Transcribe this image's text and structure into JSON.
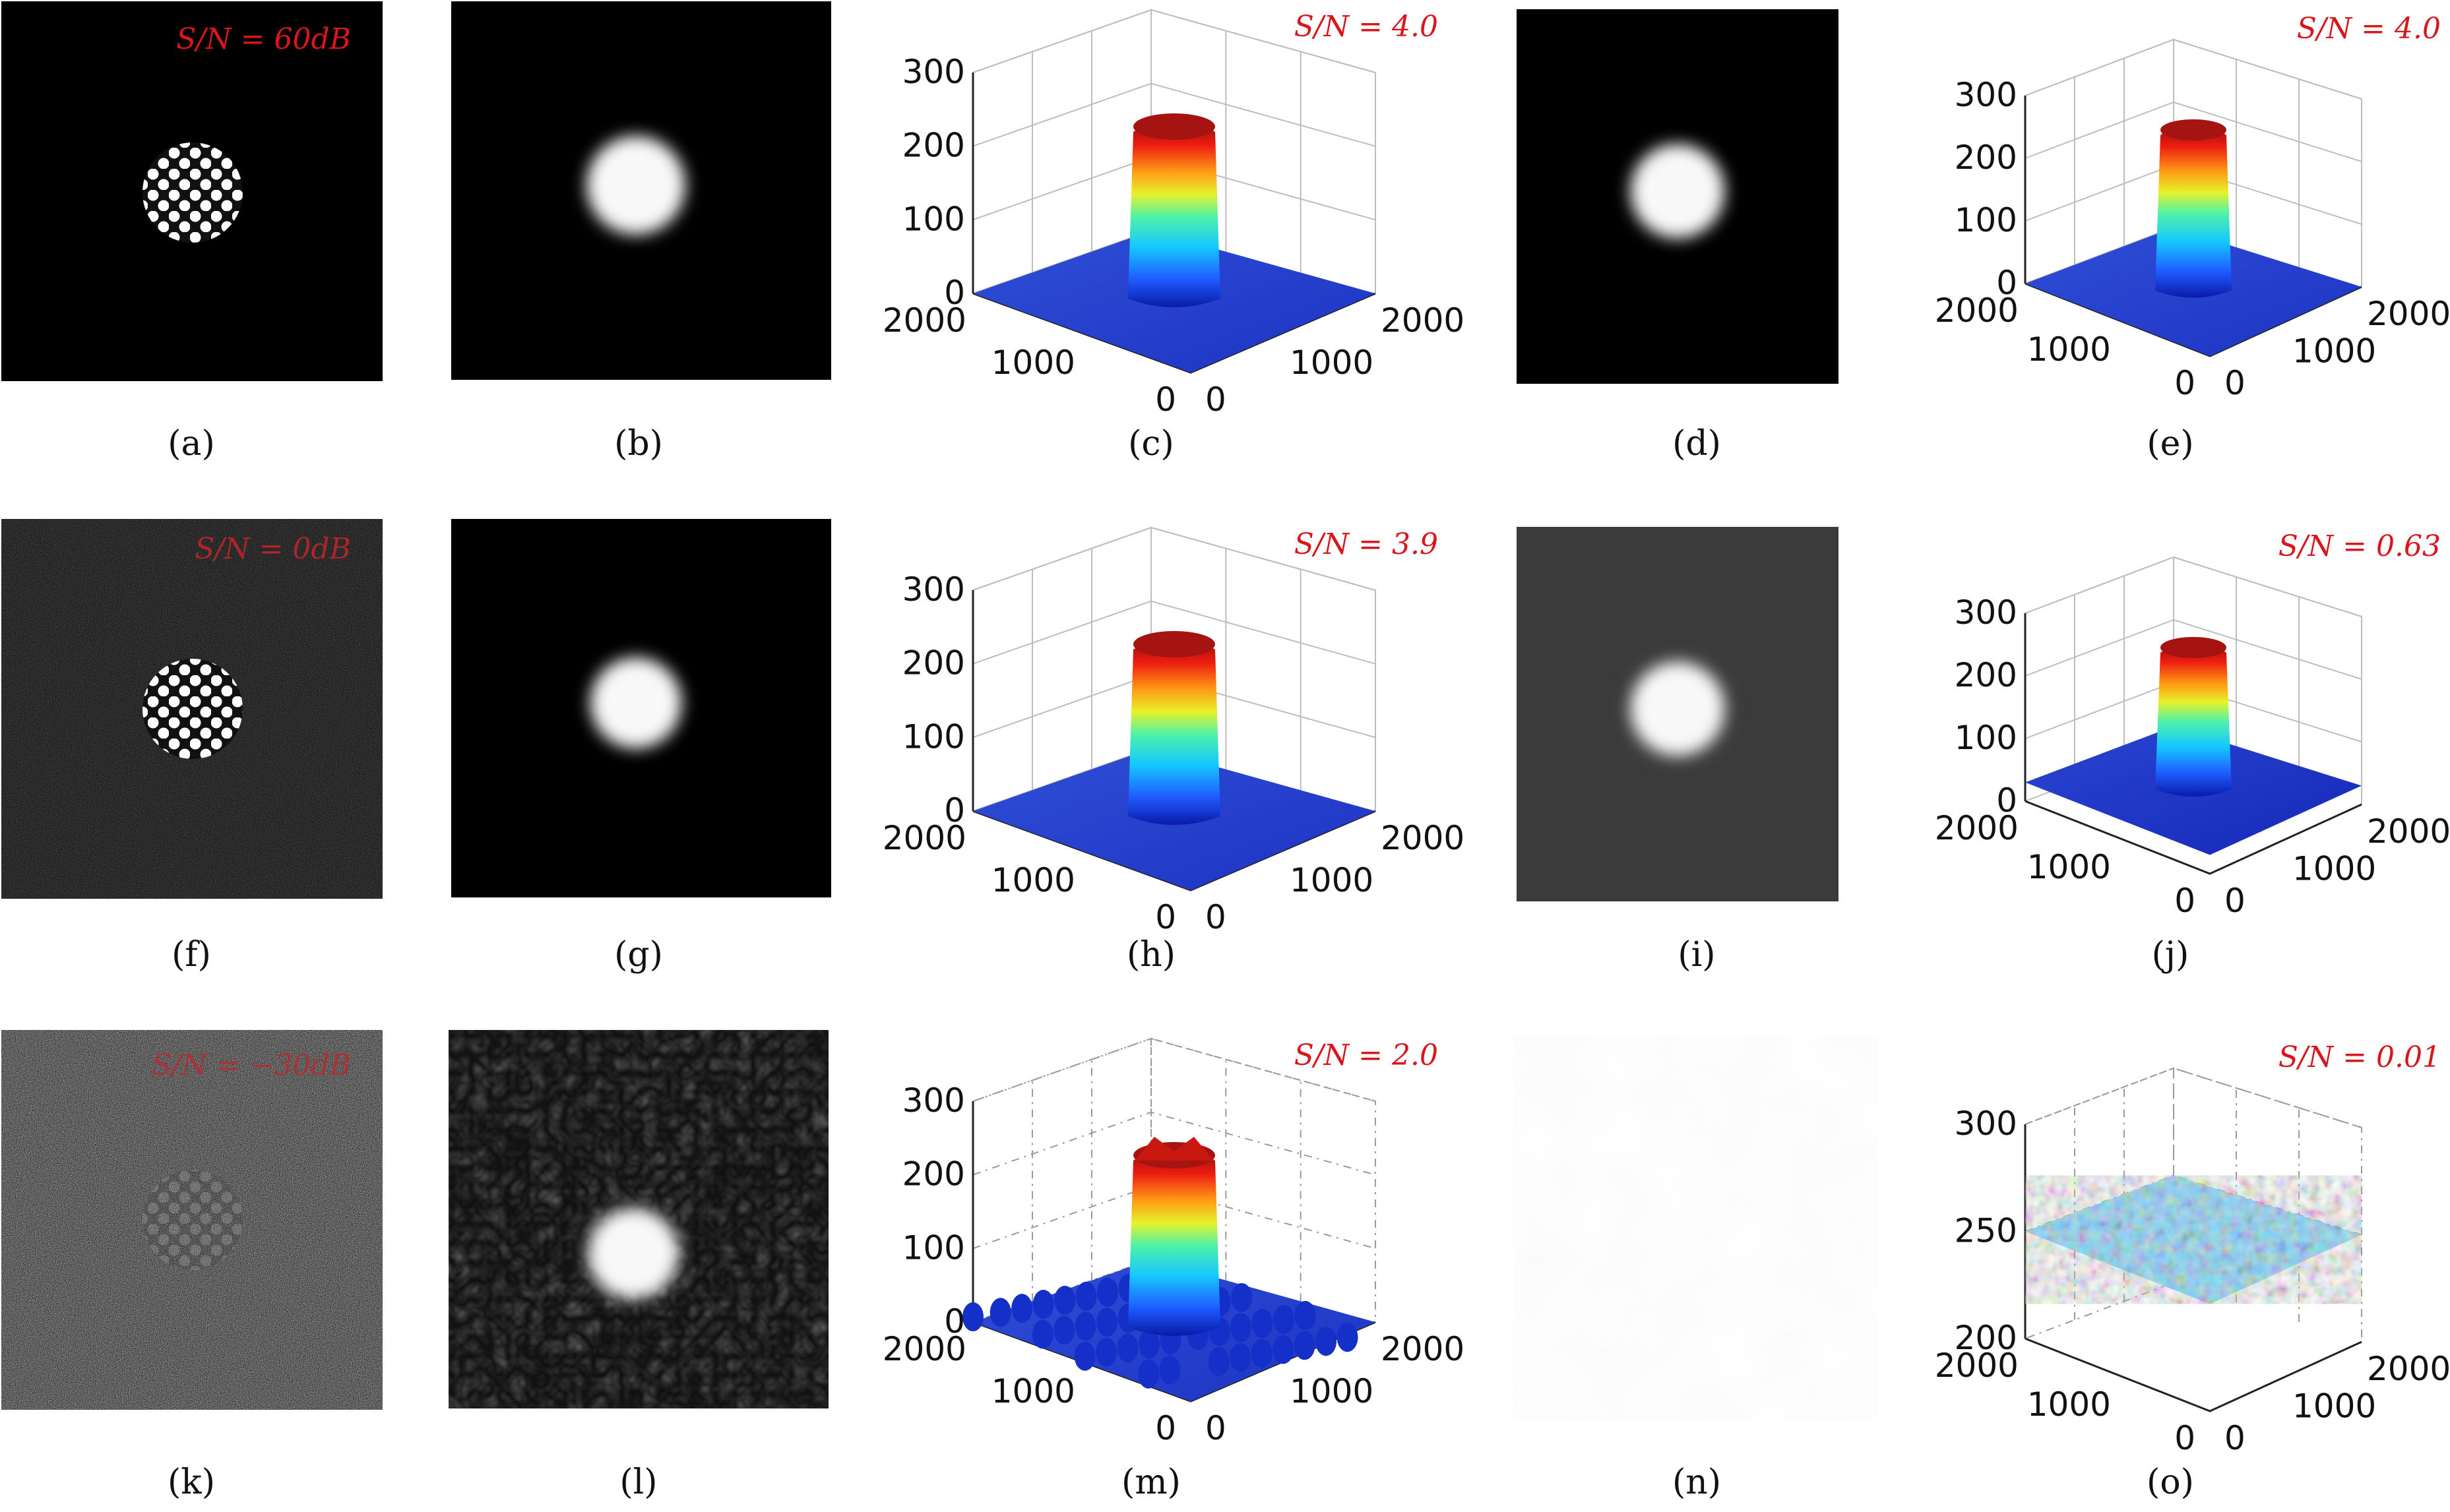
{
  "panels": [
    {
      "id": "a",
      "kind": "input",
      "caption": "(a)",
      "snr_label": "S/N = 60dB",
      "noise": 0,
      "snr_color": "#d9161c"
    },
    {
      "id": "b",
      "kind": "blur",
      "caption": "(b)",
      "bg": "#000000",
      "spot_radius": 0.13,
      "speckle": false
    },
    {
      "id": "c",
      "kind": "surface",
      "caption": "(c)",
      "snr_label": "S/N = 4.0",
      "variant": "clean"
    },
    {
      "id": "d",
      "kind": "blur",
      "caption": "(d)",
      "bg": "#000000",
      "spot_radius": 0.13,
      "speckle": false
    },
    {
      "id": "e",
      "kind": "surface",
      "caption": "(e)",
      "snr_label": "S/N = 4.0",
      "variant": "clean"
    },
    {
      "id": "f",
      "kind": "input",
      "caption": "(f)",
      "snr_label": "S/N = 0dB",
      "noise": 0.45,
      "snr_color": "#c0262a"
    },
    {
      "id": "g",
      "kind": "blur",
      "caption": "(g)",
      "bg": "#000000",
      "spot_radius": 0.12,
      "speckle": false
    },
    {
      "id": "h",
      "kind": "surface",
      "caption": "(h)",
      "snr_label": "S/N = 3.9",
      "variant": "clean"
    },
    {
      "id": "i",
      "kind": "blur",
      "caption": "(i)",
      "bg": "#3b3b3b",
      "spot_radius": 0.13,
      "speckle": false
    },
    {
      "id": "j",
      "kind": "surface",
      "caption": "(j)",
      "snr_label": "S/N = 0.63",
      "variant": "raised"
    },
    {
      "id": "k",
      "kind": "input",
      "caption": "(k)",
      "snr_label": "S/N = −30dB",
      "noise": 1.0,
      "snr_color": "#c0262a"
    },
    {
      "id": "l",
      "kind": "blur",
      "caption": "(l)",
      "bg": "#101010",
      "spot_radius": 0.12,
      "speckle": true
    },
    {
      "id": "m",
      "kind": "surface",
      "caption": "(m)",
      "snr_label": "S/N = 2.0",
      "variant": "noisy"
    },
    {
      "id": "n",
      "kind": "blank",
      "caption": "(n)",
      "bg": "#f7f7f7"
    },
    {
      "id": "o",
      "kind": "surface",
      "caption": "(o)",
      "snr_label": "S/N = 0.01",
      "variant": "flat"
    }
  ],
  "axes": {
    "z_ticks_main": [
      "0",
      "100",
      "200",
      "300"
    ],
    "z_ticks_flat": [
      "200",
      "250",
      "300"
    ],
    "xy_ticks": [
      "0",
      "1000",
      "2000"
    ]
  }
}
